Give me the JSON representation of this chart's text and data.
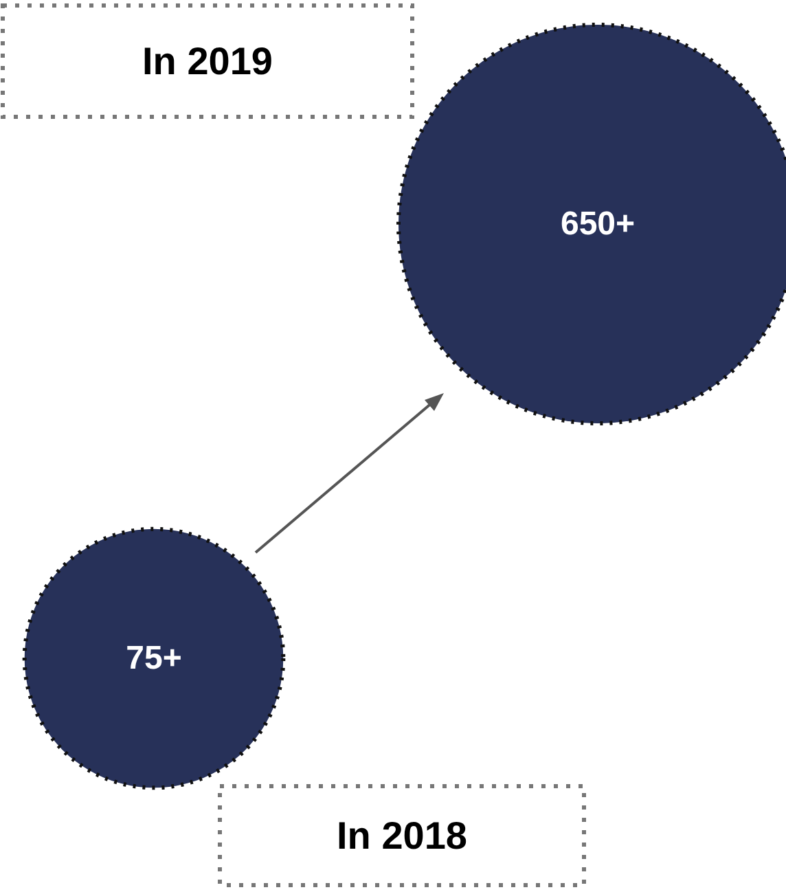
{
  "chart_data": {
    "type": "other",
    "categories": [
      "In 2018",
      "In 2019"
    ],
    "values": [
      75,
      650
    ],
    "value_labels": [
      "75+",
      "650+"
    ],
    "colors": [
      "#273159",
      "#273159"
    ]
  }
}
